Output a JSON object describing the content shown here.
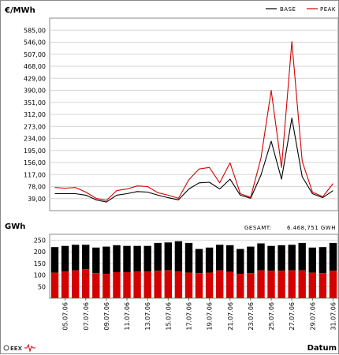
{
  "chart_data": [
    {
      "type": "line",
      "ylabel": "€/MWh",
      "yticks": [
        39.0,
        78.0,
        117.0,
        156.0,
        195.0,
        234.0,
        273.0,
        312.0,
        351.0,
        390.0,
        429.0,
        468.0,
        507.0,
        546.0,
        585.0
      ],
      "ytick_labels": [
        "39,00",
        "78,00",
        "117,00",
        "156,00",
        "195,00",
        "234,00",
        "273,00",
        "312,00",
        "351,00",
        "390,00",
        "429,00",
        "468,00",
        "507,00",
        "546,00",
        "585,00"
      ],
      "ylim": [
        0,
        624
      ],
      "grid": true,
      "legend": "top-right",
      "series": [
        {
          "name": "BASE",
          "color": "#000000",
          "values": [
            55,
            55,
            55,
            50,
            35,
            28,
            50,
            55,
            62,
            60,
            50,
            42,
            35,
            70,
            90,
            92,
            70,
            102,
            50,
            40,
            115,
            225,
            102,
            300,
            110,
            55,
            42,
            65
          ]
        },
        {
          "name": "PEAK",
          "color": "#d40000",
          "values": [
            75,
            73,
            75,
            60,
            40,
            33,
            65,
            70,
            80,
            78,
            58,
            50,
            40,
            100,
            135,
            140,
            90,
            155,
            55,
            43,
            170,
            390,
            140,
            548,
            160,
            60,
            45,
            88
          ]
        }
      ]
    },
    {
      "type": "bar",
      "ylabel": "GWh",
      "xlabel": "Datum",
      "total_label": "GESAMT:",
      "total_value": "6.468,751 GWH",
      "yticks": [
        50,
        100,
        150,
        200,
        250
      ],
      "ylim": [
        0,
        275
      ],
      "grid": true,
      "categories": [
        "04.07.06",
        "05.07.06",
        "06.07.06",
        "07.07.06",
        "08.07.06",
        "09.07.06",
        "10.07.06",
        "11.07.06",
        "12.07.06",
        "13.07.06",
        "14.07.06",
        "15.07.06",
        "16.07.06",
        "17.07.06",
        "18.07.06",
        "19.07.06",
        "20.07.06",
        "21.07.06",
        "22.07.06",
        "23.07.06",
        "24.07.06",
        "25.07.06",
        "26.07.06",
        "27.07.06",
        "28.07.06",
        "29.07.06",
        "30.07.06",
        "31.07.06"
      ],
      "xtick_labels": [
        "05.07.06",
        "07.07.06",
        "09.07.06",
        "11.07.06",
        "13.07.06",
        "15.07.06",
        "17.07.06",
        "19.07.06",
        "21.07.06",
        "23.07.06",
        "25.07.06",
        "27.07.06",
        "29.07.06",
        "31.07.06"
      ],
      "series": [
        {
          "name": "Peak",
          "color": "#d40000",
          "values": [
            110,
            115,
            120,
            125,
            108,
            105,
            112,
            112,
            115,
            115,
            118,
            120,
            115,
            110,
            108,
            110,
            120,
            113,
            105,
            108,
            120,
            118,
            118,
            120,
            120,
            110,
            108,
            118
          ]
        },
        {
          "name": "Base",
          "color": "#000000",
          "values": [
            220,
            225,
            230,
            230,
            218,
            222,
            228,
            225,
            225,
            225,
            238,
            240,
            245,
            238,
            212,
            218,
            230,
            228,
            212,
            222,
            236,
            225,
            228,
            230,
            238,
            218,
            220,
            238
          ]
        }
      ]
    }
  ],
  "logo": {
    "text": "EEX"
  }
}
